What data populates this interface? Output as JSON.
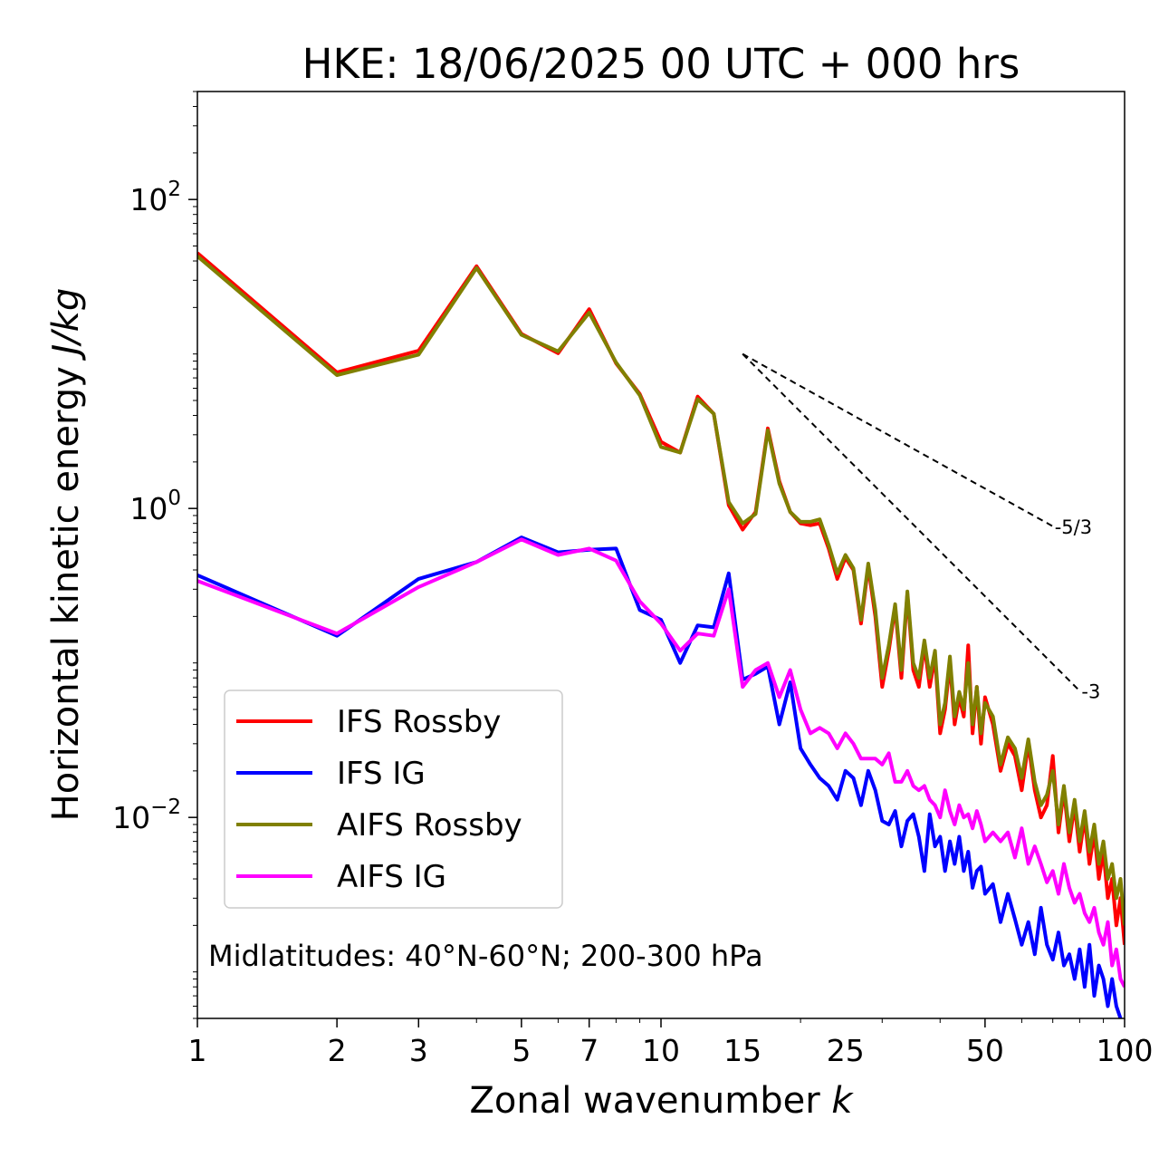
{
  "chart_data": {
    "type": "line",
    "title": "HKE: 18/06/2025 00 UTC + 000 hrs",
    "xlabel_main": "Zonal wavenumber ",
    "xlabel_italic": "k",
    "ylabel_main": "Horizontal kinetic energy ",
    "ylabel_italic": "J/kg",
    "x_scale": "log",
    "y_scale": "log",
    "xlim": [
      1,
      100
    ],
    "ylim": [
      0.0005,
      500
    ],
    "x_ticks": [
      {
        "value": 1,
        "label": "1"
      },
      {
        "value": 2,
        "label": "2"
      },
      {
        "value": 3,
        "label": "3"
      },
      {
        "value": 5,
        "label": "5"
      },
      {
        "value": 7,
        "label": "7"
      },
      {
        "value": 10,
        "label": "10"
      },
      {
        "value": 15,
        "label": "15"
      },
      {
        "value": 25,
        "label": "25"
      },
      {
        "value": 50,
        "label": "50"
      },
      {
        "value": 100,
        "label": "100"
      }
    ],
    "y_ticks": [
      {
        "value": 100,
        "base": "10",
        "exp": "2"
      },
      {
        "value": 1,
        "base": "10",
        "exp": "0"
      },
      {
        "value": 0.01,
        "base": "10",
        "exp": "−2"
      }
    ],
    "annotation": "Midlatitudes: 40°N-60°N; 200-300 hPa",
    "legend_position": "lower-left",
    "reference_lines": [
      {
        "label": "-5/3",
        "slope": -1.667,
        "x_start": 15,
        "x_end": 70,
        "y_start": 10
      },
      {
        "label": "-3",
        "slope": -3,
        "x_start": 15,
        "x_end": 80,
        "y_start": 10
      }
    ],
    "series": [
      {
        "name": "IFS Rossby",
        "color": "#ff0000",
        "x": [
          1,
          2,
          3,
          4,
          5,
          6,
          7,
          8,
          9,
          10,
          11,
          12,
          13,
          14,
          15,
          16,
          17,
          18,
          19,
          20,
          21,
          22,
          23,
          24,
          25,
          26,
          27,
          28,
          29,
          30,
          31,
          32,
          33,
          34,
          35,
          36,
          37,
          38,
          39,
          40,
          41,
          42,
          43,
          44,
          45,
          46,
          47,
          48,
          49,
          50,
          52,
          54,
          56,
          58,
          60,
          62,
          64,
          66,
          68,
          70,
          72,
          74,
          76,
          78,
          80,
          82,
          84,
          86,
          88,
          90,
          92,
          94,
          96,
          98,
          100
        ],
        "values": [
          45,
          7.6,
          10.5,
          37,
          13.5,
          10.1,
          19.5,
          8.7,
          5.5,
          2.7,
          2.3,
          5.3,
          4.1,
          1.05,
          0.73,
          0.95,
          3.3,
          1.5,
          0.95,
          0.8,
          0.78,
          0.8,
          0.55,
          0.35,
          0.48,
          0.4,
          0.18,
          0.42,
          0.2,
          0.07,
          0.12,
          0.23,
          0.08,
          0.28,
          0.09,
          0.07,
          0.13,
          0.07,
          0.11,
          0.035,
          0.05,
          0.1,
          0.04,
          0.06,
          0.045,
          0.13,
          0.035,
          0.07,
          0.03,
          0.06,
          0.04,
          0.02,
          0.03,
          0.025,
          0.015,
          0.03,
          0.015,
          0.01,
          0.012,
          0.025,
          0.008,
          0.015,
          0.007,
          0.012,
          0.006,
          0.01,
          0.005,
          0.008,
          0.004,
          0.006,
          0.003,
          0.004,
          0.002,
          0.003,
          0.0015
        ]
      },
      {
        "name": "IFS IG",
        "color": "#0000ff",
        "x": [
          1,
          2,
          3,
          4,
          5,
          6,
          7,
          8,
          9,
          10,
          11,
          12,
          13,
          14,
          15,
          16,
          17,
          18,
          19,
          20,
          21,
          22,
          23,
          24,
          25,
          26,
          27,
          28,
          29,
          30,
          31,
          32,
          33,
          34,
          35,
          36,
          37,
          38,
          39,
          40,
          41,
          42,
          43,
          44,
          45,
          46,
          47,
          48,
          49,
          50,
          52,
          54,
          56,
          58,
          60,
          62,
          64,
          66,
          68,
          70,
          72,
          74,
          76,
          78,
          80,
          82,
          84,
          86,
          88,
          90,
          92,
          94,
          96,
          98,
          100
        ],
        "values": [
          0.37,
          0.15,
          0.35,
          0.45,
          0.65,
          0.52,
          0.54,
          0.55,
          0.22,
          0.19,
          0.1,
          0.175,
          0.17,
          0.38,
          0.078,
          0.085,
          0.095,
          0.04,
          0.075,
          0.028,
          0.022,
          0.018,
          0.016,
          0.013,
          0.02,
          0.018,
          0.012,
          0.02,
          0.015,
          0.0095,
          0.009,
          0.011,
          0.0065,
          0.0095,
          0.0105,
          0.0075,
          0.0045,
          0.0105,
          0.0065,
          0.0075,
          0.0045,
          0.007,
          0.005,
          0.0075,
          0.0045,
          0.006,
          0.0035,
          0.0045,
          0.0048,
          0.0032,
          0.0037,
          0.0021,
          0.0032,
          0.0022,
          0.0015,
          0.0021,
          0.0013,
          0.0026,
          0.0015,
          0.0012,
          0.0018,
          0.0011,
          0.0013,
          0.0009,
          0.0014,
          0.0008,
          0.0015,
          0.0007,
          0.0011,
          0.0009,
          0.0006,
          0.0009,
          0.0006,
          0.0005,
          0.0004
        ]
      },
      {
        "name": "AIFS Rossby",
        "color": "#808000",
        "x": [
          1,
          2,
          3,
          4,
          5,
          6,
          7,
          8,
          9,
          10,
          11,
          12,
          13,
          14,
          15,
          16,
          17,
          18,
          19,
          20,
          21,
          22,
          23,
          24,
          25,
          26,
          27,
          28,
          29,
          30,
          31,
          32,
          33,
          34,
          35,
          36,
          37,
          38,
          39,
          40,
          41,
          42,
          43,
          44,
          45,
          46,
          47,
          48,
          49,
          50,
          52,
          54,
          56,
          58,
          60,
          62,
          64,
          66,
          68,
          70,
          72,
          74,
          76,
          78,
          80,
          82,
          84,
          86,
          88,
          90,
          92,
          94,
          96,
          98,
          100
        ],
        "values": [
          43,
          7.3,
          9.9,
          36,
          13.3,
          10.4,
          18.5,
          8.8,
          5.4,
          2.5,
          2.3,
          5.1,
          4.1,
          1.1,
          0.8,
          0.92,
          3.2,
          1.45,
          0.95,
          0.82,
          0.82,
          0.85,
          0.58,
          0.38,
          0.5,
          0.41,
          0.19,
          0.44,
          0.22,
          0.08,
          0.13,
          0.24,
          0.09,
          0.29,
          0.1,
          0.08,
          0.14,
          0.08,
          0.12,
          0.04,
          0.055,
          0.11,
          0.045,
          0.065,
          0.05,
          0.1,
          0.04,
          0.07,
          0.035,
          0.055,
          0.045,
          0.022,
          0.033,
          0.028,
          0.018,
          0.032,
          0.017,
          0.012,
          0.014,
          0.02,
          0.009,
          0.016,
          0.008,
          0.013,
          0.007,
          0.011,
          0.006,
          0.009,
          0.005,
          0.007,
          0.004,
          0.005,
          0.003,
          0.004,
          0.002
        ]
      },
      {
        "name": "AIFS IG",
        "color": "#ff00ff",
        "x": [
          1,
          2,
          3,
          4,
          5,
          6,
          7,
          8,
          9,
          10,
          11,
          12,
          13,
          14,
          15,
          16,
          17,
          18,
          19,
          20,
          21,
          22,
          23,
          24,
          25,
          26,
          27,
          28,
          29,
          30,
          31,
          32,
          33,
          34,
          35,
          36,
          37,
          38,
          39,
          40,
          41,
          42,
          43,
          44,
          45,
          46,
          47,
          48,
          49,
          50,
          52,
          54,
          56,
          58,
          60,
          62,
          64,
          66,
          68,
          70,
          72,
          74,
          76,
          78,
          80,
          82,
          84,
          86,
          88,
          90,
          92,
          94,
          96,
          98,
          100
        ],
        "values": [
          0.34,
          0.155,
          0.31,
          0.45,
          0.63,
          0.5,
          0.55,
          0.46,
          0.25,
          0.18,
          0.12,
          0.155,
          0.15,
          0.3,
          0.07,
          0.09,
          0.1,
          0.06,
          0.09,
          0.05,
          0.035,
          0.038,
          0.035,
          0.028,
          0.035,
          0.03,
          0.024,
          0.024,
          0.024,
          0.022,
          0.026,
          0.017,
          0.017,
          0.02,
          0.016,
          0.015,
          0.016,
          0.013,
          0.012,
          0.01,
          0.015,
          0.011,
          0.009,
          0.012,
          0.01,
          0.0105,
          0.0085,
          0.011,
          0.009,
          0.007,
          0.008,
          0.007,
          0.008,
          0.0055,
          0.0085,
          0.005,
          0.0065,
          0.005,
          0.0038,
          0.0045,
          0.0032,
          0.005,
          0.0035,
          0.0028,
          0.0032,
          0.0024,
          0.0021,
          0.0026,
          0.0018,
          0.0015,
          0.0021,
          0.0011,
          0.0014,
          0.0009,
          0.0008
        ]
      }
    ]
  }
}
